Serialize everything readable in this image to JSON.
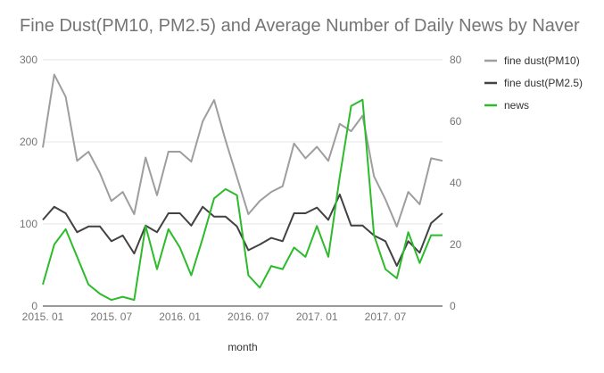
{
  "chart_data": {
    "type": "line",
    "title": "Fine Dust(PM10, PM2.5) and Average Number of Daily News by Naver",
    "xlabel": "month",
    "ylabel": "",
    "y2label": "",
    "categories": [
      "2015. 01",
      "2015. 02",
      "2015. 03",
      "2015. 04",
      "2015. 05",
      "2015. 06",
      "2015. 07",
      "2015. 08",
      "2015. 09",
      "2015. 10",
      "2015. 11",
      "2015. 12",
      "2016. 01",
      "2016. 02",
      "2016. 03",
      "2016. 04",
      "2016. 05",
      "2016. 06",
      "2016. 07",
      "2016. 08",
      "2016. 09",
      "2016. 10",
      "2016. 11",
      "2016. 12",
      "2017. 01",
      "2017. 02",
      "2017. 03",
      "2017. 04",
      "2017. 05",
      "2017. 06",
      "2017. 07",
      "2017. 08",
      "2017. 09",
      "2017. 10",
      "2017. 11",
      "2017. 12"
    ],
    "x_tick_labels": [
      "2015. 01",
      "2015. 07",
      "2016. 01",
      "2016. 07",
      "2017. 01",
      "2017. 07"
    ],
    "ylim": [
      0,
      300
    ],
    "y_ticks": [
      0,
      100,
      200,
      300
    ],
    "y2lim": [
      0,
      80
    ],
    "y2_ticks": [
      0,
      20,
      40,
      60,
      80
    ],
    "legend_position": "top-right",
    "grid": true,
    "series": [
      {
        "name": "fine dust(PM10)",
        "axis": "left",
        "color": "#9e9e9e",
        "values": [
          193,
          282,
          255,
          177,
          188,
          162,
          128,
          139,
          112,
          181,
          135,
          188,
          188,
          176,
          225,
          251,
          202,
          157,
          112,
          128,
          139,
          146,
          198,
          180,
          194,
          177,
          222,
          213,
          232,
          158,
          130,
          97,
          139,
          124,
          180,
          177
        ]
      },
      {
        "name": "fine dust(PM2.5)",
        "axis": "left",
        "color": "#424242",
        "values": [
          105,
          121,
          113,
          90,
          97,
          97,
          79,
          86,
          64,
          98,
          90,
          113,
          113,
          98,
          121,
          109,
          109,
          97,
          68,
          75,
          83,
          79,
          113,
          113,
          120,
          105,
          136,
          98,
          98,
          86,
          79,
          49,
          79,
          65,
          101,
          113
        ]
      },
      {
        "name": "news",
        "axis": "right",
        "color": "#2cbb2a",
        "values": [
          7,
          20,
          25,
          16,
          7,
          4,
          2,
          3,
          2,
          26,
          12,
          25,
          19,
          10,
          22,
          35,
          38,
          36,
          10,
          6,
          13,
          12,
          19,
          16,
          26,
          16,
          42,
          65,
          67,
          23,
          12,
          9,
          24,
          14,
          23,
          23
        ]
      }
    ]
  }
}
